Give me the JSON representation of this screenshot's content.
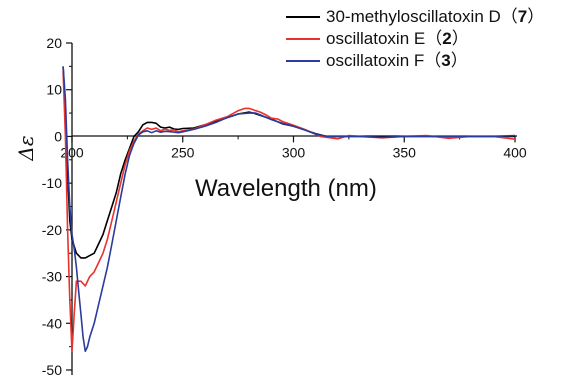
{
  "chart_data": {
    "type": "line",
    "title": "",
    "xlabel": "Wavelength  (nm)",
    "ylabel": "Δε",
    "xlim": [
      200,
      400
    ],
    "ylim": [
      -50,
      20
    ],
    "x_ticks": [
      "200",
      "250",
      "300",
      "350",
      "400"
    ],
    "y_ticks": [
      "20",
      "10",
      "0",
      "-10",
      "-20",
      "-30",
      "-40",
      "-50"
    ],
    "grid": false,
    "legend_position": "top-right",
    "series": [
      {
        "name": "30-methyloscillatoxin D",
        "compound_number": "7",
        "color": "#000000",
        "points": [
          [
            196,
            15
          ],
          [
            197,
            5
          ],
          [
            198,
            -8
          ],
          [
            199,
            -18
          ],
          [
            200,
            -22
          ],
          [
            202,
            -25
          ],
          [
            204,
            -26
          ],
          [
            206,
            -26
          ],
          [
            208,
            -25.5
          ],
          [
            210,
            -25
          ],
          [
            212,
            -23
          ],
          [
            214,
            -21
          ],
          [
            216,
            -18
          ],
          [
            218,
            -15
          ],
          [
            220,
            -12
          ],
          [
            222,
            -8
          ],
          [
            224,
            -5
          ],
          [
            226,
            -2.5
          ],
          [
            228,
            0
          ],
          [
            230,
            1
          ],
          [
            232,
            2.5
          ],
          [
            234,
            3
          ],
          [
            236,
            3
          ],
          [
            238,
            2.8
          ],
          [
            240,
            2
          ],
          [
            242,
            1.8
          ],
          [
            244,
            2
          ],
          [
            246,
            1.6
          ],
          [
            248,
            1.5
          ],
          [
            250,
            1.7
          ],
          [
            255,
            1.8
          ],
          [
            260,
            2.5
          ],
          [
            265,
            3.2
          ],
          [
            270,
            4
          ],
          [
            275,
            4.8
          ],
          [
            280,
            5.2
          ],
          [
            282,
            5
          ],
          [
            285,
            4.5
          ],
          [
            290,
            3.7
          ],
          [
            295,
            2.7
          ],
          [
            300,
            2.2
          ],
          [
            305,
            1.4
          ],
          [
            310,
            0.6
          ],
          [
            315,
            0
          ],
          [
            320,
            0
          ],
          [
            330,
            0
          ],
          [
            340,
            0
          ],
          [
            350,
            0
          ],
          [
            360,
            0
          ],
          [
            370,
            0
          ],
          [
            380,
            0
          ],
          [
            390,
            0
          ],
          [
            400,
            0
          ]
        ]
      },
      {
        "name": "oscillatoxin E",
        "compound_number": "2",
        "color": "#e8322e",
        "points": [
          [
            196,
            14
          ],
          [
            197,
            0
          ],
          [
            198,
            -20
          ],
          [
            199,
            -35
          ],
          [
            200,
            -46
          ],
          [
            201,
            -38
          ],
          [
            202,
            -31
          ],
          [
            204,
            -31
          ],
          [
            206,
            -32
          ],
          [
            208,
            -30
          ],
          [
            210,
            -29
          ],
          [
            212,
            -27
          ],
          [
            214,
            -25
          ],
          [
            216,
            -22
          ],
          [
            218,
            -18
          ],
          [
            220,
            -14
          ],
          [
            222,
            -10
          ],
          [
            224,
            -6
          ],
          [
            226,
            -3
          ],
          [
            228,
            -1
          ],
          [
            230,
            0.5
          ],
          [
            232,
            1.2
          ],
          [
            234,
            1.8
          ],
          [
            236,
            1.5
          ],
          [
            238,
            1.8
          ],
          [
            240,
            1.2
          ],
          [
            242,
            1.6
          ],
          [
            244,
            1.3
          ],
          [
            246,
            1.4
          ],
          [
            248,
            1
          ],
          [
            250,
            1.2
          ],
          [
            255,
            1.6
          ],
          [
            260,
            2.5
          ],
          [
            265,
            3.5
          ],
          [
            270,
            4.2
          ],
          [
            275,
            5.5
          ],
          [
            278,
            6
          ],
          [
            280,
            6
          ],
          [
            283,
            5.5
          ],
          [
            285,
            5.2
          ],
          [
            288,
            4.5
          ],
          [
            290,
            3.9
          ],
          [
            293,
            3.7
          ],
          [
            295,
            3.2
          ],
          [
            300,
            2.4
          ],
          [
            305,
            1.5
          ],
          [
            310,
            0.5
          ],
          [
            312,
            0
          ],
          [
            320,
            -0.5
          ],
          [
            325,
            0.2
          ],
          [
            330,
            0
          ],
          [
            340,
            -0.3
          ],
          [
            350,
            0
          ],
          [
            360,
            0.2
          ],
          [
            370,
            -0.4
          ],
          [
            380,
            0
          ],
          [
            390,
            0
          ],
          [
            400,
            -0.6
          ]
        ]
      },
      {
        "name": "oscillatoxin F",
        "compound_number": "3",
        "color": "#2b3b9e",
        "points": [
          [
            196,
            15
          ],
          [
            197,
            8
          ],
          [
            198,
            -5
          ],
          [
            199,
            -15
          ],
          [
            200,
            -21
          ],
          [
            201,
            -24
          ],
          [
            202,
            -28
          ],
          [
            203,
            -33
          ],
          [
            204,
            -38
          ],
          [
            205,
            -43
          ],
          [
            206,
            -46
          ],
          [
            207,
            -45
          ],
          [
            208,
            -43
          ],
          [
            210,
            -40
          ],
          [
            212,
            -36
          ],
          [
            214,
            -32
          ],
          [
            216,
            -28
          ],
          [
            218,
            -23
          ],
          [
            220,
            -18
          ],
          [
            222,
            -13
          ],
          [
            224,
            -8
          ],
          [
            226,
            -4
          ],
          [
            228,
            -1.5
          ],
          [
            230,
            0.3
          ],
          [
            232,
            1
          ],
          [
            234,
            1.2
          ],
          [
            236,
            0.8
          ],
          [
            238,
            1.2
          ],
          [
            240,
            0.9
          ],
          [
            242,
            1.1
          ],
          [
            245,
            1
          ],
          [
            248,
            0.8
          ],
          [
            250,
            1
          ],
          [
            255,
            1.5
          ],
          [
            260,
            2.2
          ],
          [
            265,
            3
          ],
          [
            270,
            4
          ],
          [
            275,
            4.8
          ],
          [
            280,
            5
          ],
          [
            283,
            5
          ],
          [
            285,
            4.6
          ],
          [
            290,
            3.6
          ],
          [
            295,
            2.8
          ],
          [
            300,
            2.2
          ],
          [
            305,
            1.4
          ],
          [
            310,
            0.5
          ],
          [
            315,
            0
          ],
          [
            320,
            0
          ],
          [
            330,
            0
          ],
          [
            340,
            -0.2
          ],
          [
            350,
            0
          ],
          [
            360,
            0
          ],
          [
            370,
            0
          ],
          [
            380,
            0
          ],
          [
            390,
            0
          ],
          [
            400,
            0.2
          ]
        ]
      }
    ]
  }
}
